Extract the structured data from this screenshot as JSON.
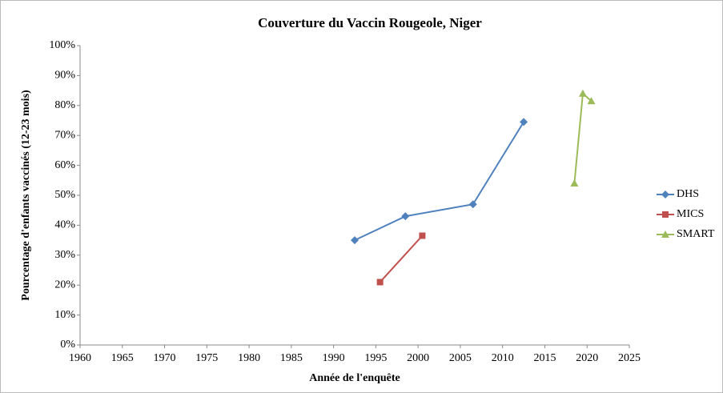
{
  "chart_data": {
    "type": "line",
    "title": "Couverture du Vaccin Rougeole, Niger",
    "xlabel": "Année de l'enquête",
    "ylabel": "Pourcentage d'enfants vaccinés (12-23 mois)",
    "series": [
      {
        "name": "DHS",
        "color": "#4f81bd",
        "marker": "diamond",
        "x": [
          1992.5,
          1998.5,
          2006.5,
          2012.5
        ],
        "values": [
          35,
          43,
          47,
          74.5
        ]
      },
      {
        "name": "MICS",
        "color": "#c0504d",
        "marker": "square",
        "x": [
          1995.5,
          2000.5
        ],
        "values": [
          21,
          36.5
        ]
      },
      {
        "name": "SMART",
        "color": "#9bbb59",
        "marker": "triangle",
        "x": [
          2018.5,
          2019.5,
          2020.5
        ],
        "values": [
          54,
          84,
          81.5
        ]
      }
    ],
    "xlim": [
      1960,
      2025
    ],
    "xticks": [
      1960,
      1965,
      1970,
      1975,
      1980,
      1985,
      1990,
      1995,
      2000,
      2005,
      2010,
      2015,
      2020,
      2025
    ],
    "ylim": [
      0,
      100
    ],
    "yticks": [
      {
        "value": 0,
        "label": "0%"
      },
      {
        "value": 10,
        "label": "10%"
      },
      {
        "value": 20,
        "label": "20%"
      },
      {
        "value": 30,
        "label": "30%"
      },
      {
        "value": 40,
        "label": "40%"
      },
      {
        "value": 50,
        "label": "50%"
      },
      {
        "value": 60,
        "label": "60%"
      },
      {
        "value": 70,
        "label": "70%"
      },
      {
        "value": 80,
        "label": "80%"
      },
      {
        "value": 90,
        "label": "90%"
      },
      {
        "value": 100,
        "label": "100%"
      }
    ],
    "grid": false,
    "legend": "right"
  }
}
